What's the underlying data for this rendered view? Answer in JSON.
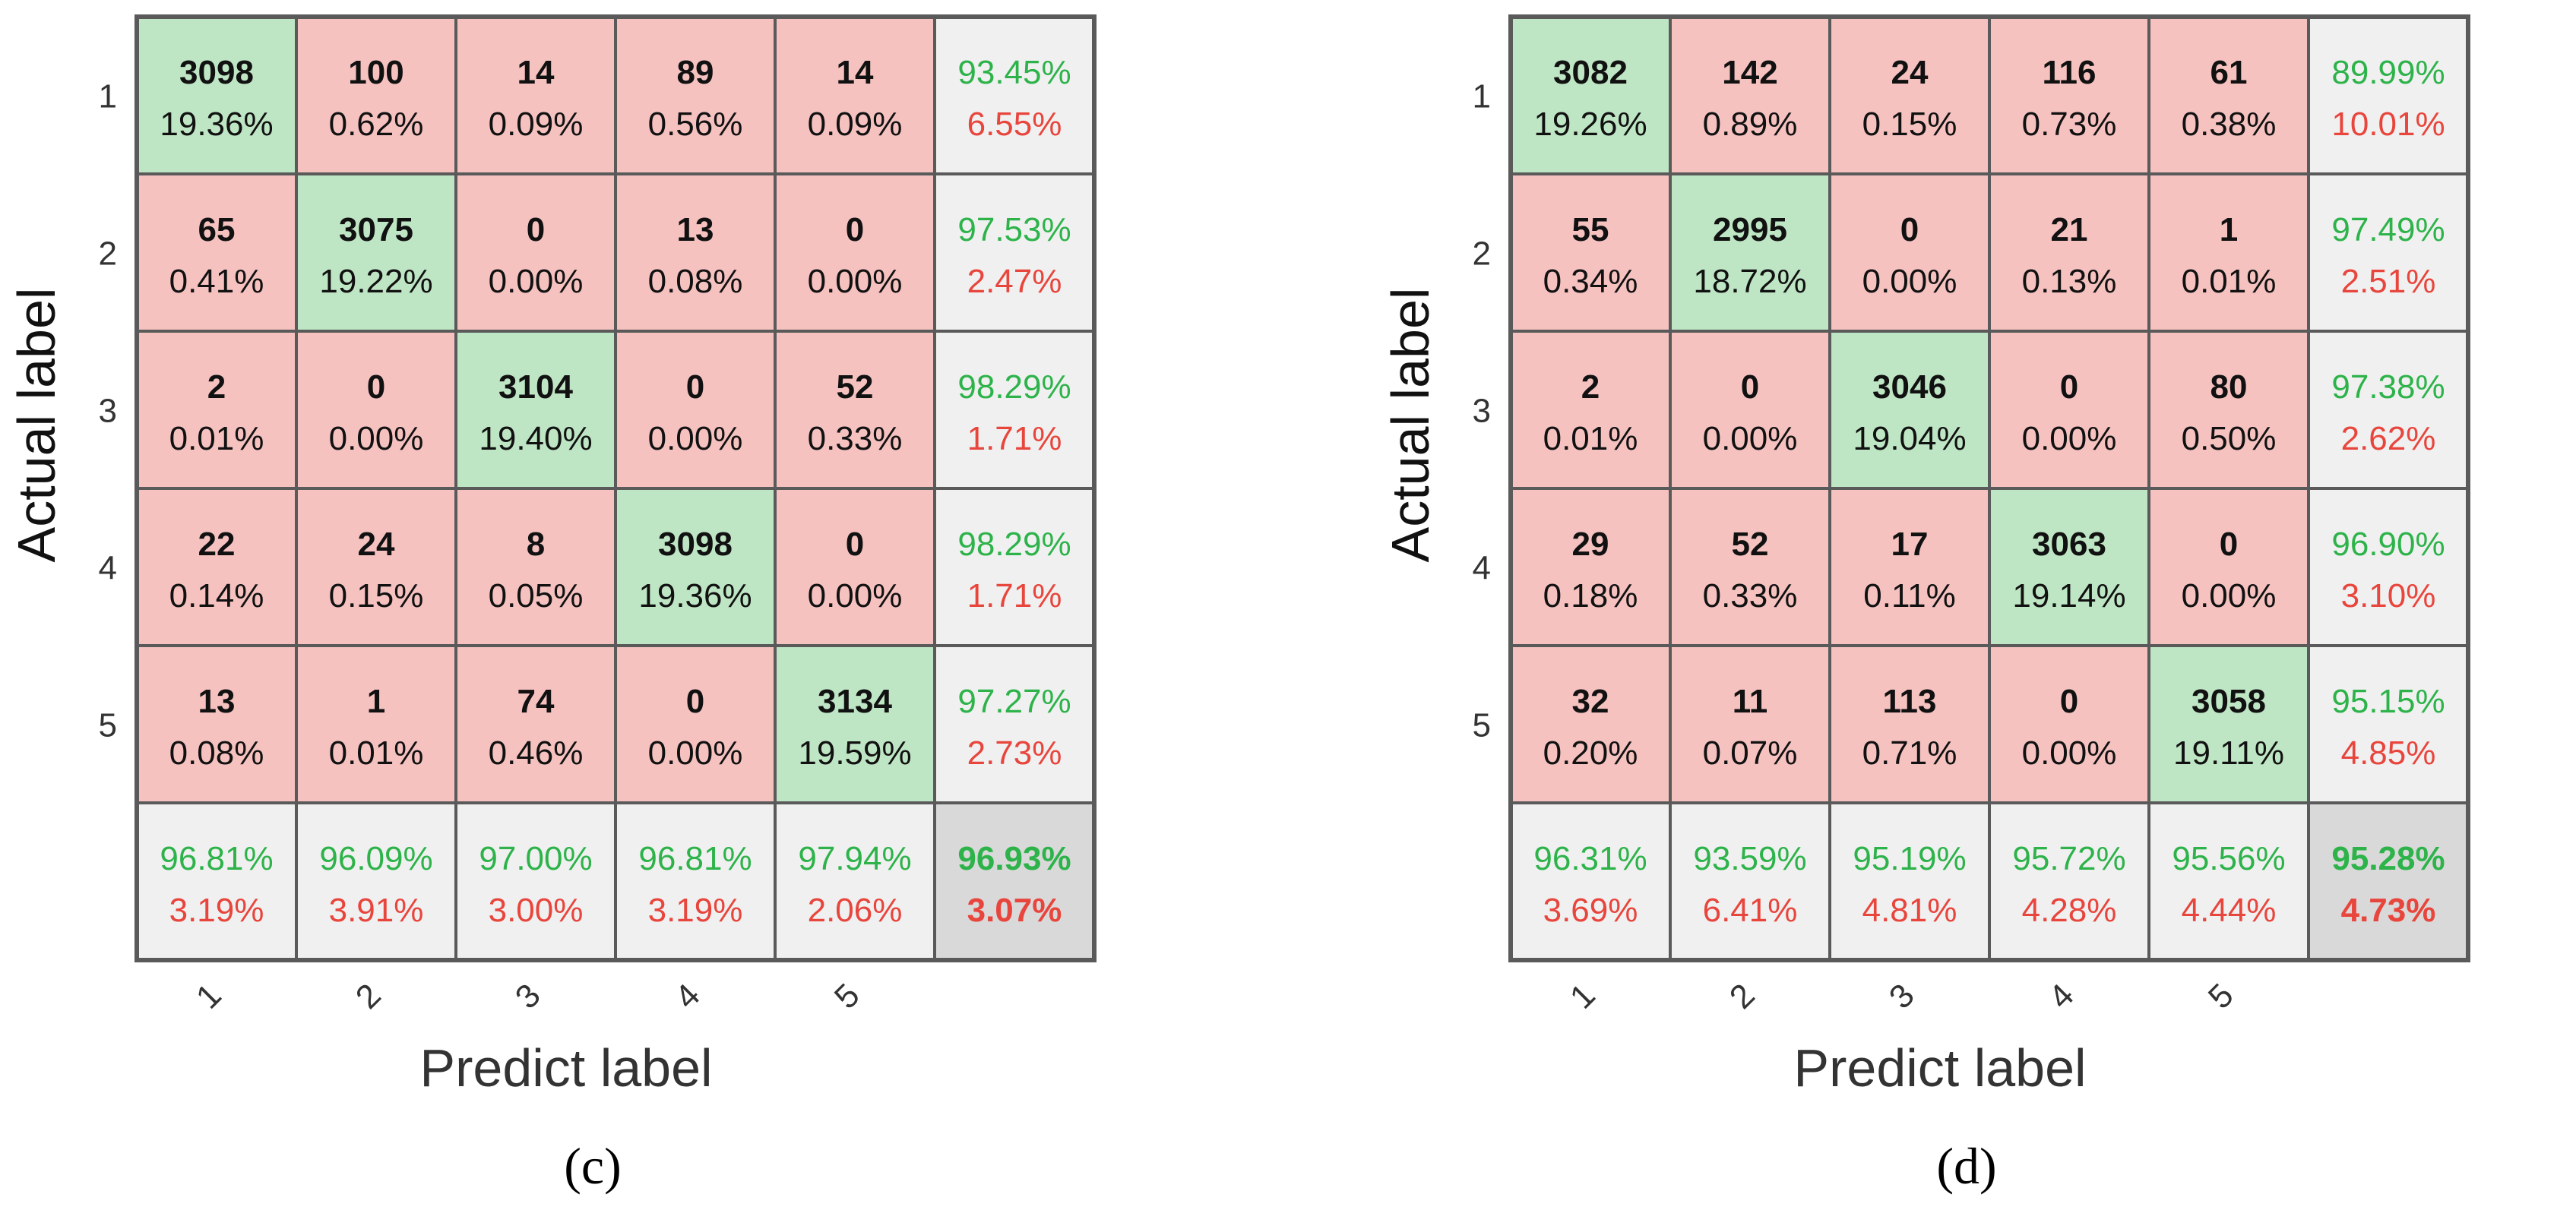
{
  "colors": {
    "correct_fill": "#bfe6c4",
    "wrong_fill": "#f5c2c0",
    "summary_fill": "#f0f0f0",
    "total_fill": "#d9d9d9",
    "grid_line": "#5a5a5a",
    "green_text": "#2db34a",
    "red_text": "#e8453c",
    "dark_text": "#111111",
    "axis_text": "#333333"
  },
  "chart_data": [
    {
      "type": "heatmap",
      "caption": "(c)",
      "xlabel": "Predict label",
      "ylabel": "Actual label",
      "row_labels": [
        "1",
        "2",
        "3",
        "4",
        "5"
      ],
      "col_labels": [
        "1",
        "2",
        "3",
        "4",
        "5"
      ],
      "counts": [
        [
          3098,
          100,
          14,
          89,
          14
        ],
        [
          65,
          3075,
          0,
          13,
          0
        ],
        [
          2,
          0,
          3104,
          0,
          52
        ],
        [
          22,
          24,
          8,
          3098,
          0
        ],
        [
          13,
          1,
          74,
          0,
          3134
        ]
      ],
      "percents": [
        [
          "19.36%",
          "0.62%",
          "0.09%",
          "0.56%",
          "0.09%"
        ],
        [
          "0.41%",
          "19.22%",
          "0.00%",
          "0.08%",
          "0.00%"
        ],
        [
          "0.01%",
          "0.00%",
          "19.40%",
          "0.00%",
          "0.33%"
        ],
        [
          "0.14%",
          "0.15%",
          "0.05%",
          "19.36%",
          "0.00%"
        ],
        [
          "0.08%",
          "0.01%",
          "0.46%",
          "0.00%",
          "19.59%"
        ]
      ],
      "row_summary": [
        [
          "93.45%",
          "6.55%"
        ],
        [
          "97.53%",
          "2.47%"
        ],
        [
          "98.29%",
          "1.71%"
        ],
        [
          "98.29%",
          "1.71%"
        ],
        [
          "97.27%",
          "2.73%"
        ]
      ],
      "col_summary": [
        [
          "96.81%",
          "3.19%"
        ],
        [
          "96.09%",
          "3.91%"
        ],
        [
          "97.00%",
          "3.00%"
        ],
        [
          "96.81%",
          "3.19%"
        ],
        [
          "97.94%",
          "2.06%"
        ]
      ],
      "total": [
        "96.93%",
        "3.07%"
      ]
    },
    {
      "type": "heatmap",
      "caption": "(d)",
      "xlabel": "Predict label",
      "ylabel": "Actual label",
      "row_labels": [
        "1",
        "2",
        "3",
        "4",
        "5"
      ],
      "col_labels": [
        "1",
        "2",
        "3",
        "4",
        "5"
      ],
      "counts": [
        [
          3082,
          142,
          24,
          116,
          61
        ],
        [
          55,
          2995,
          0,
          21,
          1
        ],
        [
          2,
          0,
          3046,
          0,
          80
        ],
        [
          29,
          52,
          17,
          3063,
          0
        ],
        [
          32,
          11,
          113,
          0,
          3058
        ]
      ],
      "percents": [
        [
          "19.26%",
          "0.89%",
          "0.15%",
          "0.73%",
          "0.38%"
        ],
        [
          "0.34%",
          "18.72%",
          "0.00%",
          "0.13%",
          "0.01%"
        ],
        [
          "0.01%",
          "0.00%",
          "19.04%",
          "0.00%",
          "0.50%"
        ],
        [
          "0.18%",
          "0.33%",
          "0.11%",
          "19.14%",
          "0.00%"
        ],
        [
          "0.20%",
          "0.07%",
          "0.71%",
          "0.00%",
          "19.11%"
        ]
      ],
      "row_summary": [
        [
          "89.99%",
          "10.01%"
        ],
        [
          "97.49%",
          "2.51%"
        ],
        [
          "97.38%",
          "2.62%"
        ],
        [
          "96.90%",
          "3.10%"
        ],
        [
          "95.15%",
          "4.85%"
        ]
      ],
      "col_summary": [
        [
          "96.31%",
          "3.69%"
        ],
        [
          "93.59%",
          "6.41%"
        ],
        [
          "95.19%",
          "4.81%"
        ],
        [
          "95.72%",
          "4.28%"
        ],
        [
          "95.56%",
          "4.44%"
        ]
      ],
      "total": [
        "95.28%",
        "4.73%"
      ]
    }
  ]
}
